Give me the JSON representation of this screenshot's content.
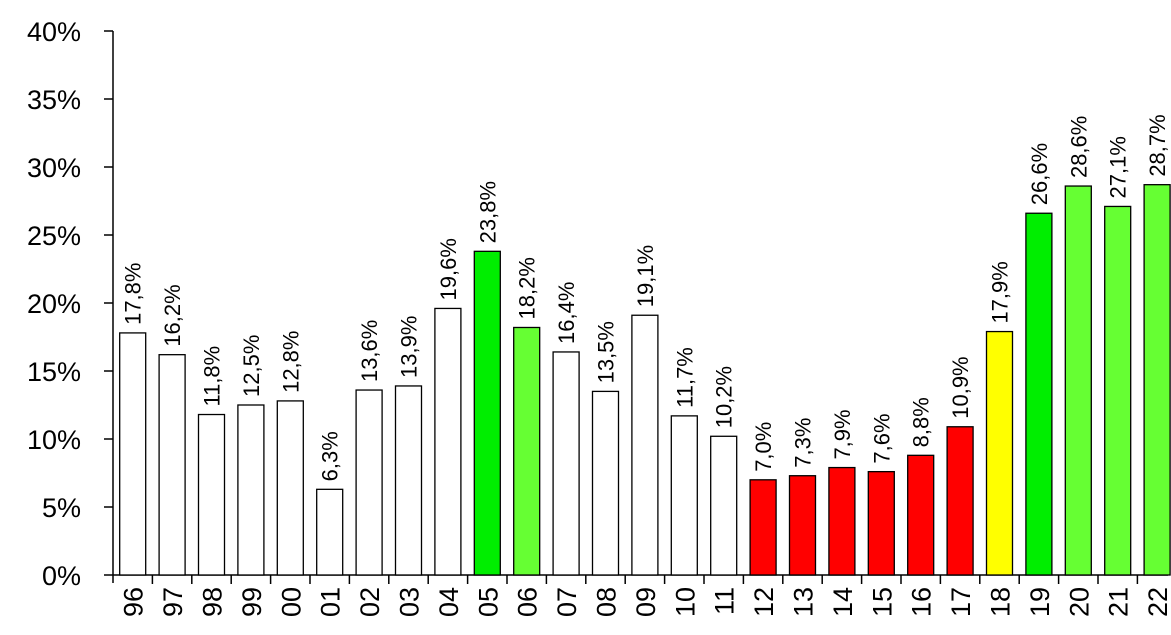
{
  "chart_data": {
    "type": "bar",
    "title": "",
    "xlabel": "",
    "ylabel": "",
    "ylim": [
      0,
      40
    ],
    "y_tick_labels": [
      "0%",
      "5%",
      "10%",
      "15%",
      "20%",
      "25%",
      "30%",
      "35%",
      "40%"
    ],
    "grid": false,
    "categories": [
      "96",
      "97",
      "98",
      "99",
      "00",
      "01",
      "02",
      "03",
      "04",
      "05",
      "06",
      "07",
      "08",
      "09",
      "10",
      "11",
      "12",
      "13",
      "14",
      "15",
      "16",
      "17",
      "18",
      "19",
      "20",
      "21",
      "22"
    ],
    "values": [
      17.8,
      16.2,
      11.8,
      12.5,
      12.8,
      6.3,
      13.6,
      13.9,
      19.6,
      23.8,
      18.2,
      16.4,
      13.5,
      19.1,
      11.7,
      10.2,
      7.0,
      7.3,
      7.9,
      7.6,
      8.8,
      10.9,
      17.9,
      26.6,
      28.6,
      27.1,
      28.7
    ],
    "value_labels": [
      "17,8%",
      "16,2%",
      "11,8%",
      "12,5%",
      "12,8%",
      "6,3%",
      "13,6%",
      "13,9%",
      "19,6%",
      "23,8%",
      "18,2%",
      "16,4%",
      "13,5%",
      "19,1%",
      "11,7%",
      "10,2%",
      "7,0%",
      "7,3%",
      "7,9%",
      "7,6%",
      "8,8%",
      "10,9%",
      "17,9%",
      "26,6%",
      "28,6%",
      "27,1%",
      "28,7%"
    ],
    "bar_colors": [
      "#ffffff",
      "#ffffff",
      "#ffffff",
      "#ffffff",
      "#ffffff",
      "#ffffff",
      "#ffffff",
      "#ffffff",
      "#ffffff",
      "#00ee00",
      "#66ff33",
      "#ffffff",
      "#ffffff",
      "#ffffff",
      "#ffffff",
      "#ffffff",
      "#ff0000",
      "#ff0000",
      "#ff0000",
      "#ff0000",
      "#ff0000",
      "#ff0000",
      "#ffff00",
      "#00ee00",
      "#66ff33",
      "#66ff33",
      "#66ff33"
    ]
  }
}
